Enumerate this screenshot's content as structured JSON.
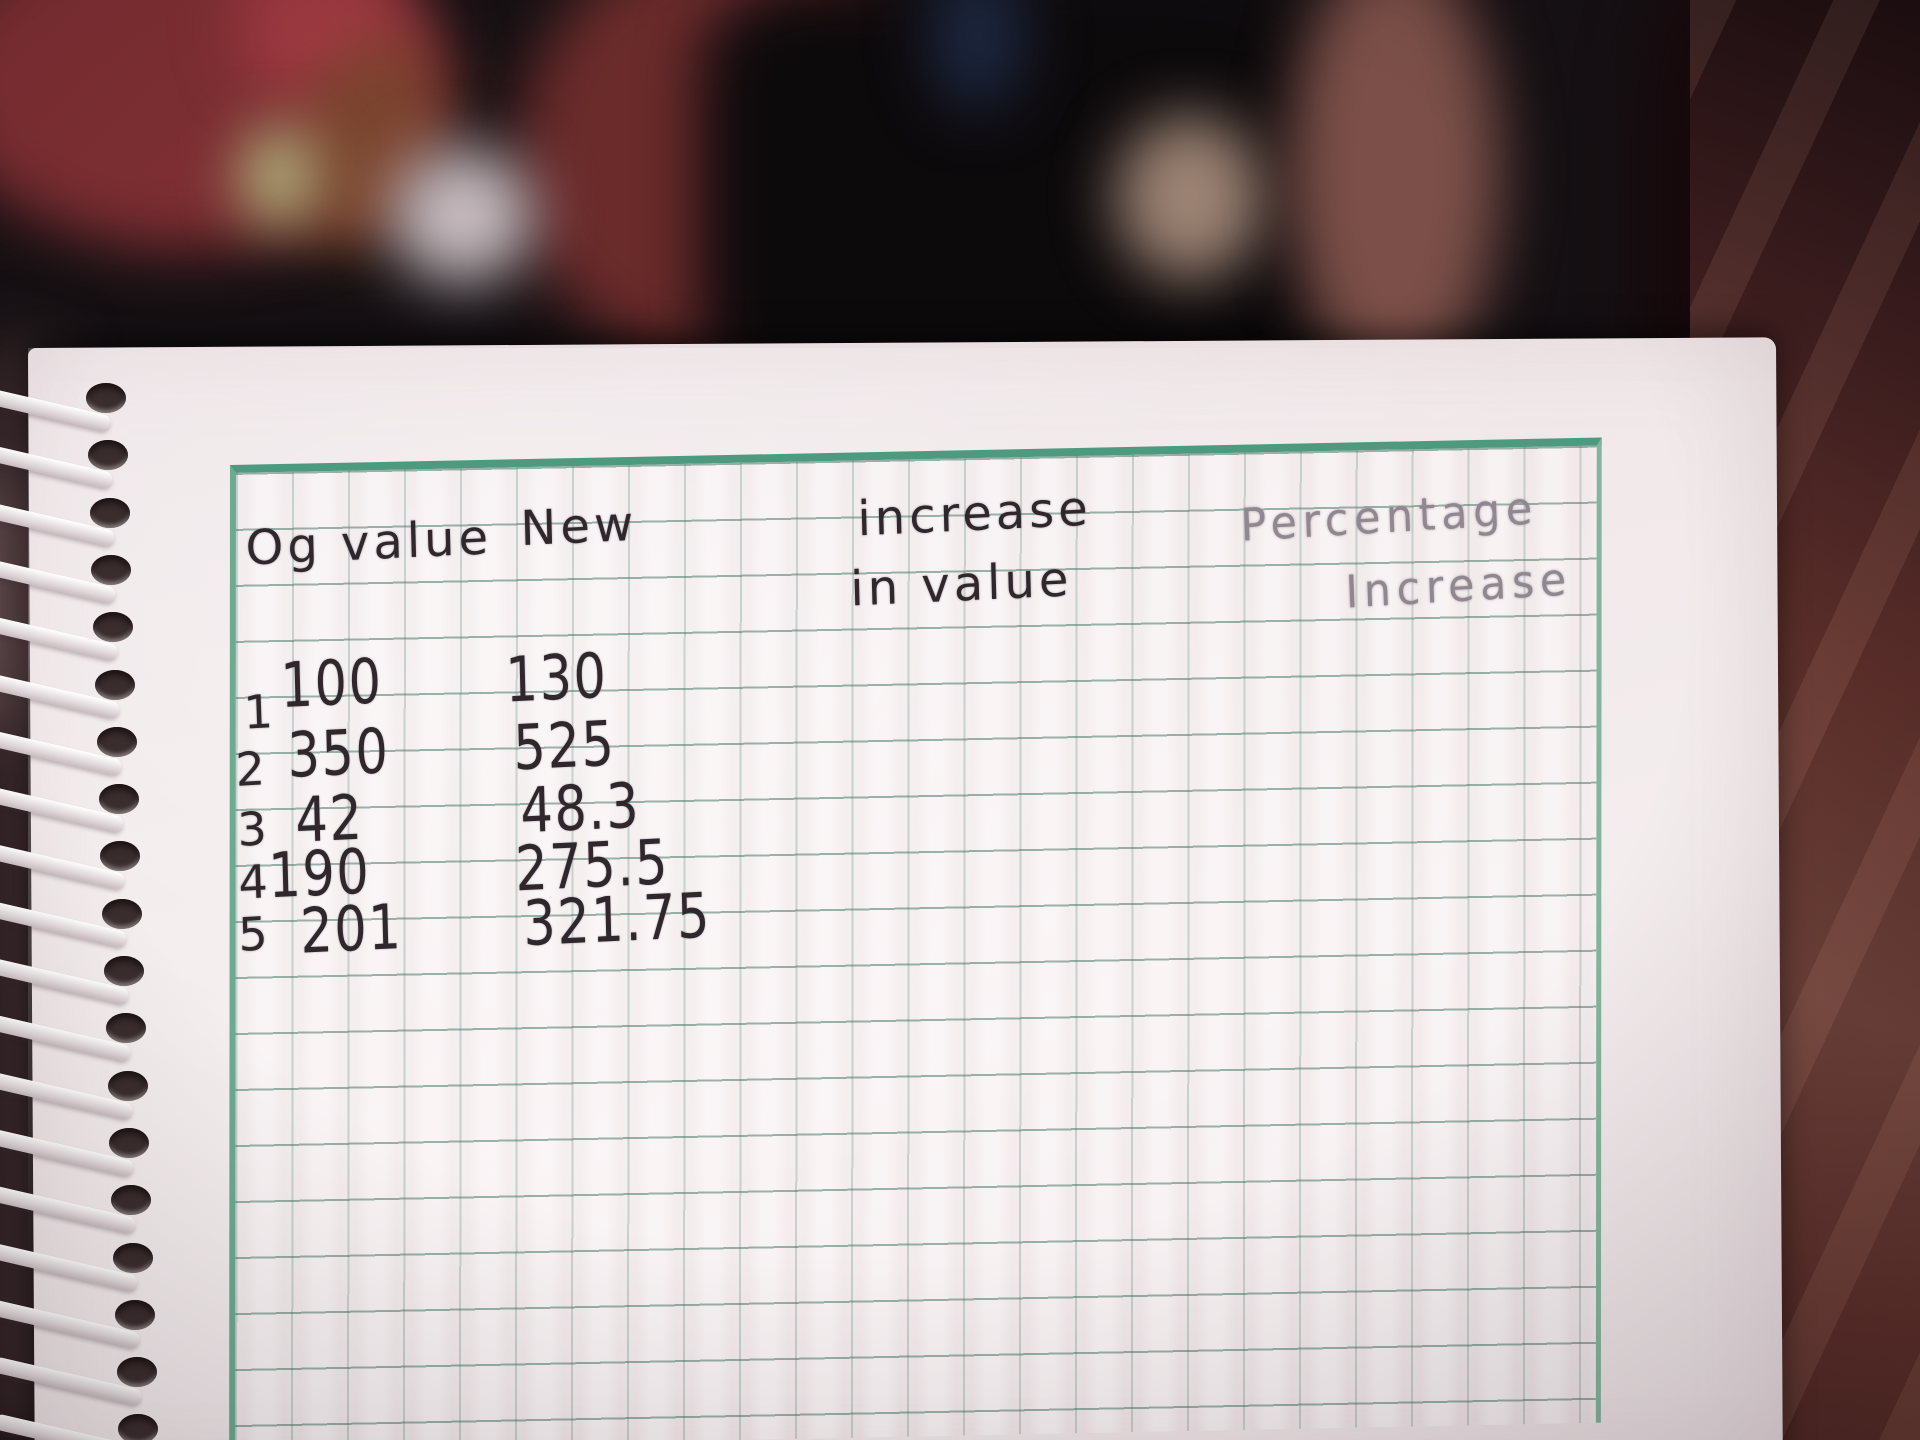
{
  "notebook": {
    "table": {
      "headers": {
        "col1": "Og value",
        "col2": "New",
        "col3_line1": "increase",
        "col3_line2": "in value",
        "col4_line1": "Percentage",
        "col4_line2": "Increase"
      },
      "rows": [
        {
          "num": "1",
          "og": "100",
          "new": "130"
        },
        {
          "num": "2",
          "og": "350",
          "new": "525"
        },
        {
          "num": "3",
          "og": "42",
          "new": "48.3"
        },
        {
          "num": "4",
          "og": "190",
          "new": "275.5"
        },
        {
          "num": "5",
          "og": "201",
          "new": "321.75"
        }
      ]
    },
    "colors": {
      "paper": "#f1e9ea",
      "grid_line_horizontal": "#4e7a6a",
      "grid_border": "#4e9a81",
      "ink": "#2f272c",
      "pencil": "#90878f",
      "background_maroon": "#5c2f2a"
    }
  }
}
